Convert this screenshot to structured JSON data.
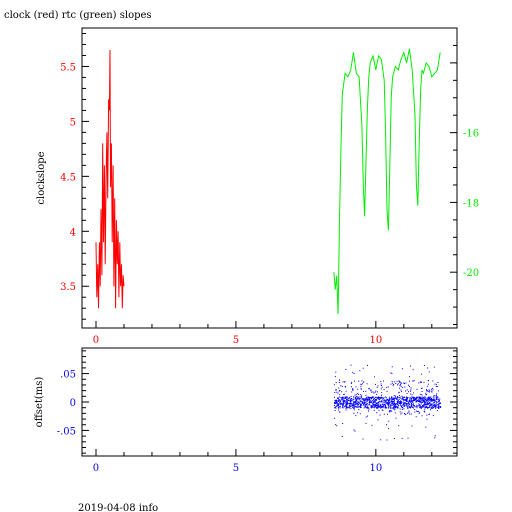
{
  "title": "clock (red) rtc (green) slopes",
  "footer": "2019-04-08 info",
  "colors": {
    "red": "#ff0000",
    "green": "#00ee00",
    "blue": "#0000ff",
    "axis": "#000000"
  },
  "chart_data": [
    {
      "type": "line",
      "xlim": [
        -0.5,
        12.9
      ],
      "x_ticks": [
        0,
        5,
        10
      ],
      "ylabel": "clockslope",
      "ylim": [
        3.12,
        5.85
      ],
      "y_ticks": [
        3.5,
        4,
        4.5,
        5,
        5.5
      ],
      "y2lim": [
        -21.6,
        -13.0
      ],
      "y2_ticks": [
        -20,
        -18,
        -16
      ],
      "series": [
        {
          "color": "red",
          "axis": "left",
          "x": [
            0.0,
            0.03,
            0.06,
            0.09,
            0.12,
            0.15,
            0.18,
            0.21,
            0.24,
            0.27,
            0.3,
            0.33,
            0.36,
            0.39,
            0.42,
            0.45,
            0.48,
            0.5,
            0.52,
            0.55,
            0.58,
            0.61,
            0.64,
            0.67,
            0.7,
            0.73,
            0.76,
            0.79,
            0.82,
            0.85,
            0.88,
            0.91,
            0.94,
            0.97,
            1.0
          ],
          "y": [
            3.9,
            3.4,
            3.7,
            3.3,
            3.9,
            3.5,
            4.2,
            3.6,
            4.8,
            3.9,
            4.6,
            3.7,
            4.5,
            4.9,
            4.3,
            5.2,
            5.1,
            5.65,
            4.4,
            4.8,
            3.9,
            4.6,
            3.5,
            4.3,
            3.3,
            4.1,
            3.7,
            4.0,
            3.4,
            3.9,
            3.5,
            3.7,
            3.3,
            3.6,
            3.5
          ]
        },
        {
          "color": "green",
          "axis": "right",
          "x": [
            8.5,
            8.55,
            8.6,
            8.65,
            8.7,
            8.75,
            8.8,
            8.9,
            9.0,
            9.1,
            9.2,
            9.3,
            9.4,
            9.5,
            9.55,
            9.6,
            9.65,
            9.7,
            9.75,
            9.8,
            9.9,
            10.0,
            10.1,
            10.2,
            10.3,
            10.35,
            10.4,
            10.45,
            10.5,
            10.55,
            10.6,
            10.7,
            10.8,
            10.9,
            11.0,
            11.1,
            11.2,
            11.3,
            11.4,
            11.45,
            11.5,
            11.55,
            11.6,
            11.65,
            11.7,
            11.8,
            11.9,
            12.0,
            12.1,
            12.2,
            12.3
          ],
          "y": [
            -20.0,
            -20.5,
            -20.1,
            -21.2,
            -18.5,
            -16.5,
            -14.9,
            -14.3,
            -14.4,
            -14.2,
            -13.7,
            -14.3,
            -14.4,
            -15.8,
            -17.5,
            -18.4,
            -16.8,
            -15.3,
            -14.4,
            -14.0,
            -13.8,
            -14.2,
            -13.8,
            -13.9,
            -14.5,
            -16.0,
            -18.2,
            -18.8,
            -17.0,
            -15.0,
            -14.4,
            -14.1,
            -14.2,
            -13.9,
            -13.7,
            -14.0,
            -13.6,
            -14.2,
            -15.5,
            -17.5,
            -18.1,
            -16.3,
            -14.8,
            -14.2,
            -14.3,
            -14.0,
            -14.1,
            -14.4,
            -14.3,
            -14.2,
            -13.7
          ]
        }
      ]
    },
    {
      "type": "scatter",
      "xlim": [
        -0.5,
        12.9
      ],
      "x_ticks": [
        0,
        5,
        10
      ],
      "ylabel": "offset(ms)",
      "ylim": [
        -0.095,
        0.095
      ],
      "y_ticks": [
        -0.05,
        0,
        0.05
      ],
      "series": [
        {
          "color": "blue",
          "x_range": [
            8.5,
            12.3
          ],
          "center": 0.0,
          "spread": 0.06,
          "count": 1400
        }
      ]
    }
  ]
}
